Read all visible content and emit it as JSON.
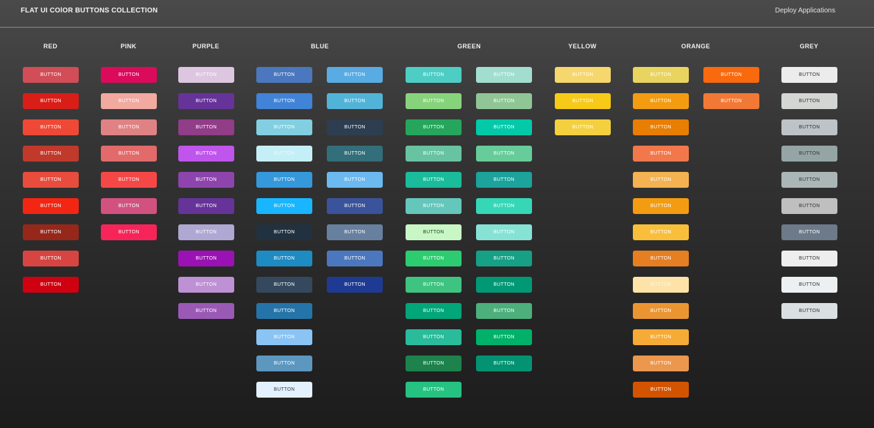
{
  "header": {
    "title": "FLAT UI COlOR BUTTONS COLLECTION",
    "link": "Deploy Applications"
  },
  "button_label": "BUTTON",
  "groups": [
    {
      "name": "RED",
      "columns": [
        [
          {
            "bg": "#d24d57"
          },
          {
            "bg": "#d91e18"
          },
          {
            "bg": "#ef4836"
          },
          {
            "bg": "#c0392b"
          },
          {
            "bg": "#e74c3c"
          },
          {
            "bg": "#f22613"
          },
          {
            "bg": "#96281b"
          },
          {
            "bg": "#d64541"
          },
          {
            "bg": "#cf000f"
          }
        ]
      ]
    },
    {
      "name": "PINK",
      "columns": [
        [
          {
            "bg": "#db0a5b"
          },
          {
            "bg": "#f1a9a0"
          },
          {
            "bg": "#e08283"
          },
          {
            "bg": "#e26a6a"
          },
          {
            "bg": "#f64747"
          },
          {
            "bg": "#d2527f"
          },
          {
            "bg": "#f62459"
          }
        ]
      ]
    },
    {
      "name": "PURPLE",
      "columns": [
        [
          {
            "bg": "#dcc6e0"
          },
          {
            "bg": "#663399"
          },
          {
            "bg": "#913d88"
          },
          {
            "bg": "#bf55ec"
          },
          {
            "bg": "#8e44ad"
          },
          {
            "bg": "#663399"
          },
          {
            "bg": "#aea8d3"
          },
          {
            "bg": "#9a12b3"
          },
          {
            "bg": "#be90d4"
          },
          {
            "bg": "#9b59b6"
          }
        ]
      ]
    },
    {
      "name": "BLUE",
      "columns": [
        [
          {
            "bg": "#4b77be"
          },
          {
            "bg": "#4183d7"
          },
          {
            "bg": "#81cfe0"
          },
          {
            "bg": "#c5eff7",
            "fg": "#eef8fb"
          },
          {
            "bg": "#3498db"
          },
          {
            "bg": "#19b5fe"
          },
          {
            "bg": "#22313f"
          },
          {
            "bg": "#1e8bc3"
          },
          {
            "bg": "#34495e"
          },
          {
            "bg": "#2574a9"
          },
          {
            "bg": "#89c4f4"
          },
          {
            "bg": "#5c97bf"
          },
          {
            "bg": "#e4f1fe",
            "fg": "#2b3e50"
          }
        ],
        [
          {
            "bg": "#59abe3"
          },
          {
            "bg": "#52b3d9"
          },
          {
            "bg": "#2c3e50"
          },
          {
            "bg": "#336e7b"
          },
          {
            "bg": "#6bb9f0"
          },
          {
            "bg": "#3a539b"
          },
          {
            "bg": "#67809f"
          },
          {
            "bg": "#4b77be"
          },
          {
            "bg": "#1f3a93"
          }
        ]
      ]
    },
    {
      "name": "GREEN",
      "columns": [
        [
          {
            "bg": "#4ecdc4"
          },
          {
            "bg": "#87d37c"
          },
          {
            "bg": "#26a65b"
          },
          {
            "bg": "#68c3a3"
          },
          {
            "bg": "#1bbc9b"
          },
          {
            "bg": "#65c6bb"
          },
          {
            "bg": "#c8f7c5",
            "fg": "#1f3b2b"
          },
          {
            "bg": "#2ecc71"
          },
          {
            "bg": "#3fc380"
          },
          {
            "bg": "#03a678"
          },
          {
            "bg": "#2abb9b"
          },
          {
            "bg": "#1e824c"
          },
          {
            "bg": "#26c281"
          }
        ],
        [
          {
            "bg": "#a2ded0"
          },
          {
            "bg": "#90c695"
          },
          {
            "bg": "#03c9a9"
          },
          {
            "bg": "#66cc99"
          },
          {
            "bg": "#1ba39c"
          },
          {
            "bg": "#36d7b7"
          },
          {
            "bg": "#86e2d5"
          },
          {
            "bg": "#16a085"
          },
          {
            "bg": "#019875"
          },
          {
            "bg": "#4daf7c"
          },
          {
            "bg": "#00b16a"
          },
          {
            "bg": "#049372"
          }
        ]
      ]
    },
    {
      "name": "YELLOW",
      "columns": [
        [
          {
            "bg": "#f5d76e"
          },
          {
            "bg": "#f7ca18"
          },
          {
            "bg": "#f4d03f"
          }
        ]
      ]
    },
    {
      "name": "ORANGE",
      "columns": [
        [
          {
            "bg": "#e9d460"
          },
          {
            "bg": "#f39c12"
          },
          {
            "bg": "#e87e04"
          },
          {
            "bg": "#f2784b"
          },
          {
            "bg": "#f4b350"
          },
          {
            "bg": "#f39c12"
          },
          {
            "bg": "#f9bf3b"
          },
          {
            "bg": "#e67e22"
          },
          {
            "bg": "#fde3a7",
            "fg": "#fff7e6"
          },
          {
            "bg": "#eb9532"
          },
          {
            "bg": "#f5ab35"
          },
          {
            "bg": "#eb974e"
          },
          {
            "bg": "#d35400"
          }
        ],
        [
          {
            "bg": "#f9690e"
          },
          {
            "bg": "#f27935"
          }
        ]
      ]
    },
    {
      "name": "GREY",
      "columns": [
        [
          {
            "bg": "#ececec",
            "fg": "#333333"
          },
          {
            "bg": "#d2d7d3",
            "fg": "#333333"
          },
          {
            "bg": "#bdc3c7",
            "fg": "#333333"
          },
          {
            "bg": "#95a5a6",
            "fg": "#333333"
          },
          {
            "bg": "#abb7b7",
            "fg": "#333333"
          },
          {
            "bg": "#bfbfbf",
            "fg": "#333333"
          },
          {
            "bg": "#6c7a89",
            "fg": "#ffffff"
          },
          {
            "bg": "#eeeeee",
            "fg": "#333333"
          },
          {
            "bg": "#ecf0f1",
            "fg": "#333333"
          },
          {
            "bg": "#dadfe1",
            "fg": "#333333"
          }
        ]
      ]
    }
  ]
}
